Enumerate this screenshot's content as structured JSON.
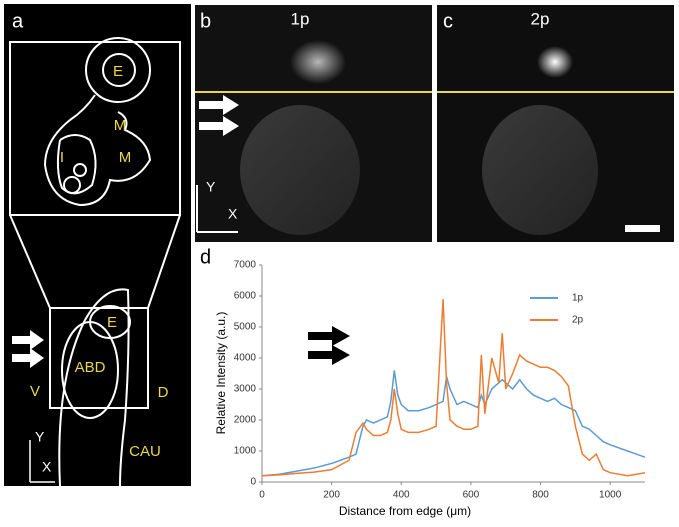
{
  "panel_a": {
    "label": "a",
    "labels": [
      "E",
      "M",
      "M",
      "I",
      "E",
      "ABD",
      "V",
      "D",
      "CAU"
    ],
    "axis_y": "Y",
    "axis_x": "X"
  },
  "panel_b": {
    "label": "b",
    "title": "1p",
    "axis_y": "Y",
    "axis_x": "X"
  },
  "panel_c": {
    "label": "c",
    "title": "2p"
  },
  "panel_d": {
    "label": "d"
  },
  "chart_data": {
    "type": "line",
    "xlabel": "Distance from edge (μm)",
    "ylabel": "Relative Intensity (a.u.)",
    "x": [
      0,
      50,
      100,
      150,
      200,
      250,
      270,
      290,
      300,
      320,
      340,
      360,
      370,
      380,
      390,
      400,
      420,
      450,
      480,
      500,
      520,
      530,
      540,
      560,
      580,
      600,
      620,
      630,
      640,
      660,
      680,
      690,
      700,
      720,
      740,
      760,
      780,
      800,
      820,
      840,
      860,
      880,
      900,
      920,
      940,
      960,
      980,
      1000,
      1050,
      1100
    ],
    "series": [
      {
        "name": "1p",
        "color": "#5b9bd5",
        "values": [
          200,
          250,
          350,
          450,
          600,
          800,
          900,
          1800,
          2000,
          1900,
          2000,
          2100,
          2600,
          3600,
          2800,
          2500,
          2300,
          2300,
          2400,
          2500,
          2600,
          3400,
          3000,
          2500,
          2600,
          2500,
          2400,
          2800,
          2500,
          3000,
          3200,
          3300,
          3200,
          3000,
          3300,
          3000,
          2800,
          2700,
          2600,
          2700,
          2500,
          2400,
          2300,
          1800,
          1700,
          1500,
          1300,
          1200,
          1000,
          800
        ]
      },
      {
        "name": "2p",
        "color": "#ed7d31",
        "values": [
          200,
          230,
          280,
          320,
          400,
          700,
          1600,
          1900,
          1700,
          1500,
          1500,
          1600,
          2000,
          3000,
          2200,
          1700,
          1600,
          1600,
          1700,
          1800,
          5900,
          3200,
          2000,
          1800,
          1700,
          1700,
          1800,
          4100,
          2200,
          4000,
          3200,
          4800,
          3000,
          3500,
          4100,
          3900,
          3800,
          3700,
          3700,
          3600,
          3400,
          3100,
          1800,
          900,
          700,
          900,
          400,
          300,
          200,
          300
        ]
      }
    ],
    "xlim": [
      0,
      1100
    ],
    "xticks": [
      0,
      200,
      400,
      600,
      800,
      1000
    ],
    "ylim": [
      0,
      7000
    ],
    "yticks": [
      0,
      1000,
      2000,
      3000,
      4000,
      5000,
      6000,
      7000
    ],
    "grid": false,
    "legend": "upper right"
  }
}
